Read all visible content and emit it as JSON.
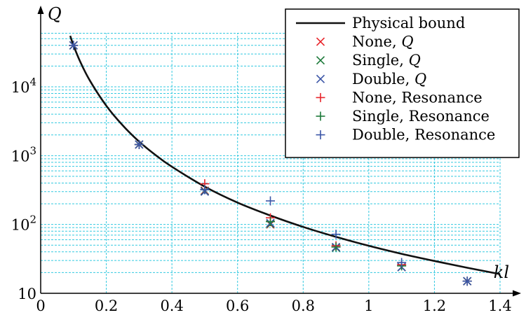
{
  "chart_data": {
    "type": "scatter",
    "xlabel": "kl",
    "ylabel": "Q",
    "x_scale": "linear",
    "y_scale": "log",
    "xlim": [
      0,
      1.4
    ],
    "ylim": [
      10,
      60000
    ],
    "x_ticks": [
      {
        "value": 0,
        "label": "0"
      },
      {
        "value": 0.2,
        "label": "0.2"
      },
      {
        "value": 0.4,
        "label": "0.4"
      },
      {
        "value": 0.6,
        "label": "0.6"
      },
      {
        "value": 0.8,
        "label": "0.8"
      },
      {
        "value": 1.0,
        "label": "1"
      },
      {
        "value": 1.2,
        "label": "1.2"
      },
      {
        "value": 1.4,
        "label": "1.4"
      }
    ],
    "y_ticks": [
      {
        "value": 10,
        "base": "10",
        "exp": ""
      },
      {
        "value": 100,
        "base": "10",
        "exp": "2"
      },
      {
        "value": 1000,
        "base": "10",
        "exp": "3"
      },
      {
        "value": 10000,
        "base": "10",
        "exp": "4"
      }
    ],
    "grid": "dashed, minor log grid, cyan",
    "legend_position": "top-right",
    "colors": {
      "bound": "#111111",
      "none": "#e8242a",
      "single": "#1d7a3a",
      "double": "#3b55a6",
      "grid": "#33c9e0"
    },
    "physical_bound": {
      "name": "Physical bound",
      "x": [
        0.09,
        0.1,
        0.12,
        0.15,
        0.2,
        0.25,
        0.3,
        0.35,
        0.4,
        0.5,
        0.6,
        0.7,
        0.8,
        0.9,
        1.0,
        1.1,
        1.2,
        1.3,
        1.4
      ],
      "y": [
        55000,
        40000,
        23500,
        12300,
        5300,
        2750,
        1600,
        1020,
        690,
        355,
        208,
        135,
        92,
        66,
        49,
        37.5,
        29.5,
        23.5,
        19
      ]
    },
    "series": [
      {
        "name_base": "None, ",
        "name_math": "Q",
        "color": "none",
        "marker": "x",
        "points": [
          [
            0.1,
            40000
          ],
          [
            0.3,
            1450
          ],
          [
            0.5,
            310
          ],
          [
            0.7,
            100
          ],
          [
            0.9,
            46
          ],
          [
            1.1,
            24
          ],
          [
            1.3,
            15
          ]
        ]
      },
      {
        "name_base": "Single, ",
        "name_math": "Q",
        "color": "single",
        "marker": "x",
        "points": [
          [
            0.1,
            40000
          ],
          [
            0.3,
            1450
          ],
          [
            0.5,
            305
          ],
          [
            0.7,
            102
          ],
          [
            0.9,
            46
          ],
          [
            1.1,
            24
          ],
          [
            1.3,
            15
          ]
        ]
      },
      {
        "name_base": "Double, ",
        "name_math": "Q",
        "color": "double",
        "marker": "x",
        "points": [
          [
            0.1,
            40000
          ],
          [
            0.3,
            1450
          ],
          [
            0.5,
            300
          ],
          [
            0.7,
            105
          ],
          [
            0.9,
            47
          ],
          [
            1.1,
            24
          ],
          [
            1.3,
            15
          ]
        ]
      },
      {
        "name_base": "None, Resonance",
        "name_math": "",
        "color": "none",
        "marker": "+",
        "points": [
          [
            0.1,
            40000
          ],
          [
            0.3,
            1450
          ],
          [
            0.5,
            390
          ],
          [
            0.7,
            125
          ],
          [
            0.9,
            49
          ],
          [
            1.1,
            26
          ],
          [
            1.3,
            15
          ]
        ]
      },
      {
        "name_base": "Single, Resonance",
        "name_math": "",
        "color": "single",
        "marker": "+",
        "points": [
          [
            0.1,
            40000
          ],
          [
            0.3,
            1450
          ],
          [
            0.5,
            320
          ],
          [
            0.7,
            110
          ],
          [
            0.9,
            47
          ],
          [
            1.1,
            25
          ],
          [
            1.3,
            15
          ]
        ]
      },
      {
        "name_base": "Double, Resonance",
        "name_math": "",
        "color": "double",
        "marker": "+",
        "points": [
          [
            0.1,
            40000
          ],
          [
            0.3,
            1450
          ],
          [
            0.5,
            320
          ],
          [
            0.7,
            220
          ],
          [
            0.9,
            72
          ],
          [
            1.1,
            28
          ],
          [
            1.3,
            15
          ]
        ]
      }
    ]
  }
}
